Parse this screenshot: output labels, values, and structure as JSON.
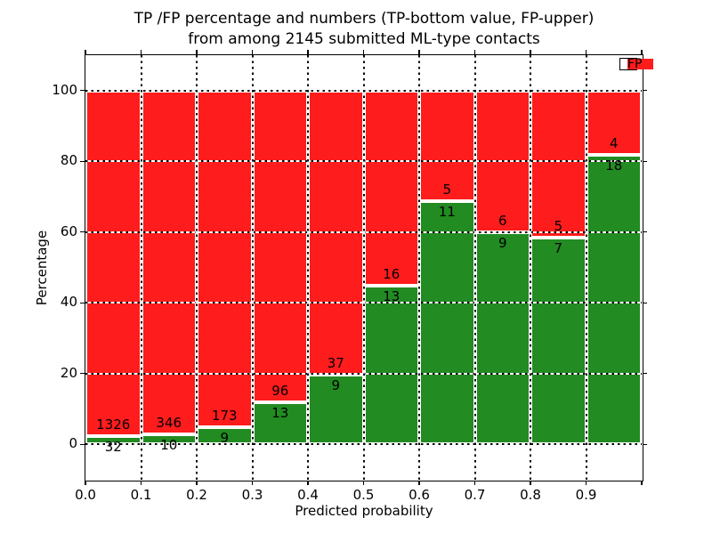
{
  "chart_data": {
    "type": "bar",
    "stacked": true,
    "normalized_to_percent": true,
    "title_line1": "TP /FP percentage and numbers (TP-bottom value, FP-upper)",
    "title_line2": "from among 2145 submitted ML-type contacts",
    "xlabel": "Predicted probability",
    "ylabel": "Percentage",
    "total_contacts": 2145,
    "categories": [
      "0.0",
      "0.1",
      "0.2",
      "0.3",
      "0.4",
      "0.5",
      "0.6",
      "0.7",
      "0.8",
      "0.9"
    ],
    "bin_width": 0.1,
    "series": [
      {
        "name": "TP",
        "color": "#228b22",
        "counts": [
          32,
          10,
          9,
          13,
          9,
          13,
          11,
          9,
          7,
          18
        ]
      },
      {
        "name": "FP",
        "color": "#ff1c1c",
        "counts": [
          1326,
          346,
          173,
          96,
          37,
          16,
          5,
          6,
          5,
          4
        ]
      }
    ],
    "tp_percent_of_bin": [
      2.4,
      2.8,
      4.9,
      11.9,
      19.6,
      44.8,
      68.8,
      60.0,
      58.3,
      81.8
    ],
    "x_ticks": [
      "0.0",
      "0.1",
      "0.2",
      "0.3",
      "0.4",
      "0.5",
      "0.6",
      "0.7",
      "0.8",
      "0.9"
    ],
    "y_ticks": [
      0,
      20,
      40,
      60,
      80,
      100
    ],
    "xlim": [
      0.0,
      1.0
    ],
    "ylim": [
      -10,
      110
    ],
    "grid_style": "dotted",
    "grid_color": "#000000",
    "legend": {
      "position": "upper-right",
      "entries": [
        {
          "label": "TP",
          "color": "#228b22"
        },
        {
          "label": "FP",
          "color": "#ff1c1c"
        }
      ]
    }
  }
}
